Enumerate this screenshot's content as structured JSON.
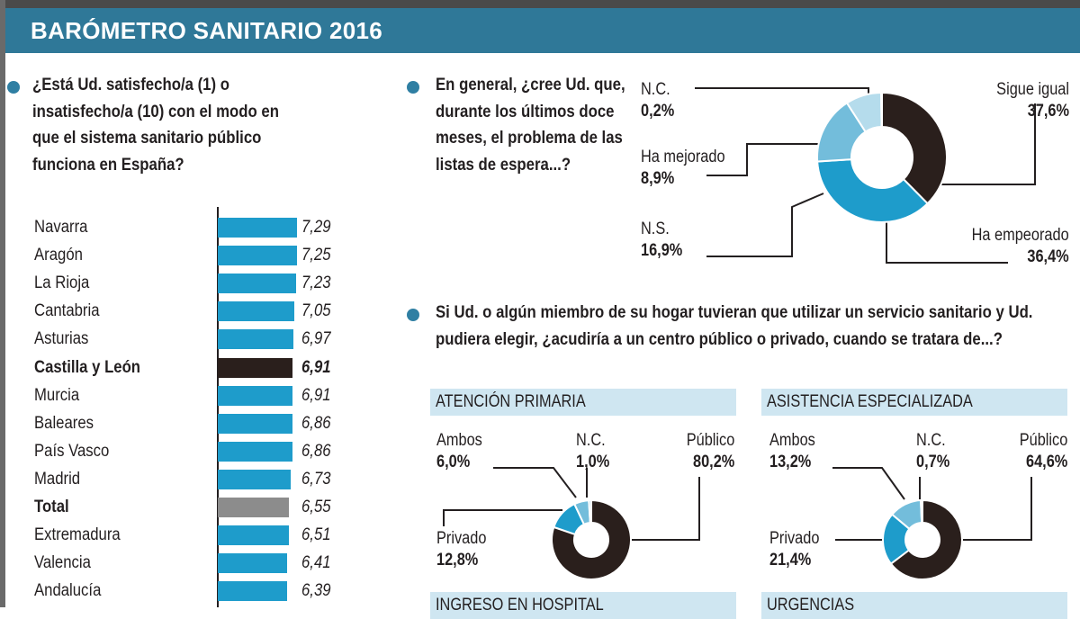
{
  "header": {
    "title": "BARÓMETRO SANITARIO 2016"
  },
  "colors": {
    "header": "#2f7898",
    "bar": "#1e9ccb",
    "highlight": "#2a1f1c",
    "total": "#8c8c8c",
    "dark": "#2a1f1c",
    "blue": "#1e9ccb",
    "mid": "#73bddb",
    "light": "#b5dcec"
  },
  "chart_data": [
    {
      "type": "bar",
      "orientation": "horizontal",
      "title": "¿Está Ud. satisfecho/a (1) o insatisfecho/a (10) con el modo en que el sistema sanitario público funciona en España?",
      "categories": [
        "Navarra",
        "Aragón",
        "La Rioja",
        "Cantabria",
        "Asturias",
        "Castilla y León",
        "Murcia",
        "Baleares",
        "País Vasco",
        "Madrid",
        "Total",
        "Extremadura",
        "Valencia",
        "Andalucía"
      ],
      "values": [
        7.29,
        7.25,
        7.23,
        7.05,
        6.97,
        6.91,
        6.91,
        6.86,
        6.86,
        6.73,
        6.55,
        6.51,
        6.41,
        6.39
      ],
      "value_labels": [
        "7,29",
        "7,25",
        "7,23",
        "7,05",
        "6,97",
        "6,91",
        "6,91",
        "6,86",
        "6,86",
        "6,73",
        "6,55",
        "6,51",
        "6,41",
        "6,39"
      ],
      "highlight": "Castilla y León",
      "total": "Total"
    },
    {
      "type": "pie",
      "title": "En general, ¿cree Ud. que, durante los últimos doce meses, el problema de las listas de espera...?",
      "slices": [
        {
          "label": "Sigue igual",
          "value": 37.6,
          "text": "37,6%"
        },
        {
          "label": "Ha empeorado",
          "value": 36.4,
          "text": "36,4%"
        },
        {
          "label": "N.S.",
          "value": 16.9,
          "text": "16,9%"
        },
        {
          "label": "Ha mejorado",
          "value": 8.9,
          "text": "8,9%"
        },
        {
          "label": "N.C.",
          "value": 0.2,
          "text": "0,2%"
        }
      ]
    },
    {
      "type": "pie",
      "title": "ATENCIÓN PRIMARIA",
      "slices": [
        {
          "label": "Público",
          "value": 80.2,
          "text": "80,2%"
        },
        {
          "label": "Privado",
          "value": 12.8,
          "text": "12,8%"
        },
        {
          "label": "Ambos",
          "value": 6.0,
          "text": "6,0%"
        },
        {
          "label": "N.C.",
          "value": 1.0,
          "text": "1,0%"
        }
      ]
    },
    {
      "type": "pie",
      "title": "ASISTENCIA ESPECIALIZADA",
      "slices": [
        {
          "label": "Público",
          "value": 64.6,
          "text": "64,6%"
        },
        {
          "label": "Privado",
          "value": 21.4,
          "text": "21,4%"
        },
        {
          "label": "Ambos",
          "value": 13.2,
          "text": "13,2%"
        },
        {
          "label": "N.C.",
          "value": 0.7,
          "text": "0,7%"
        }
      ]
    }
  ],
  "q3": {
    "text": "Si Ud. o algún miembro de su hogar tuvieran que utilizar un servicio sanitario y Ud. pudiera elegir, ¿acudiría a un centro público o privado, cuando se tratara de...?"
  },
  "sections_cut": [
    "INGRESO EN HOSPITAL",
    "URGENCIAS"
  ]
}
